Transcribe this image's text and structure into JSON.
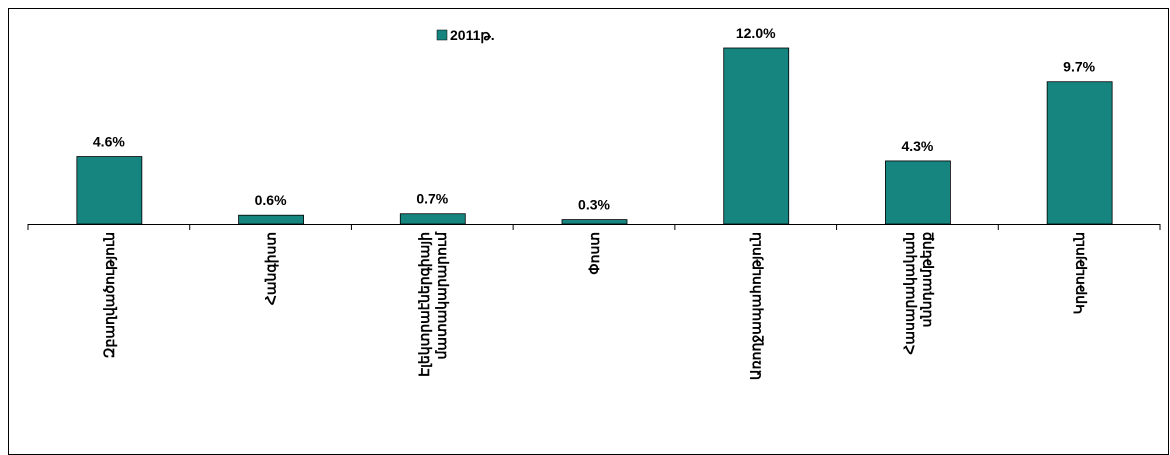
{
  "chart_data": {
    "type": "bar",
    "categories": [
      [
        "Զբաղվածություն"
      ],
      [
        "Հանգիստ"
      ],
      [
        "Էլեկտրաէներգիայի",
        "մատակարարում"
      ],
      [
        "Փոստ"
      ],
      [
        "Առողջապահություն"
      ],
      [
        "Հասարակական",
        "սննդամթերք"
      ],
      [
        "Կրթություն"
      ]
    ],
    "series": [
      {
        "name": "2011թ.",
        "color": "#16857f",
        "values": [
          4.6,
          0.6,
          0.7,
          0.3,
          12.0,
          4.3,
          9.7
        ],
        "value_labels": [
          "4.6%",
          "0.6%",
          "0.7%",
          "0.3%",
          "12.0%",
          "4.3%",
          "9.7%"
        ]
      }
    ],
    "ylim": [
      0,
      12
    ],
    "grid": false,
    "legend": "top"
  }
}
